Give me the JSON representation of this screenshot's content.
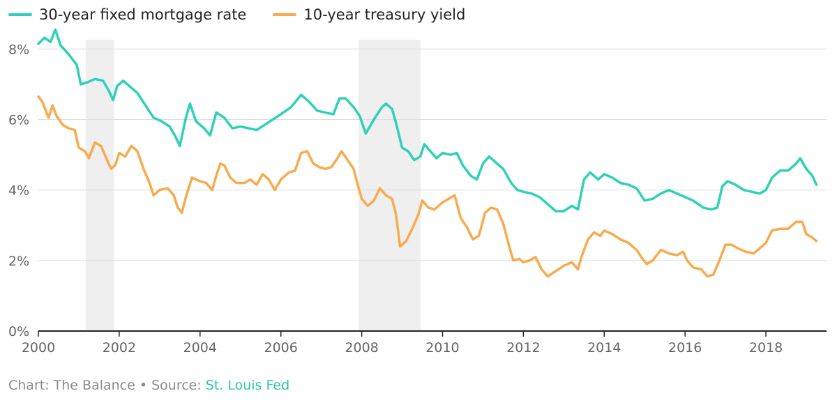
{
  "chart_data": {
    "type": "line",
    "xlim": [
      2000,
      2019.5
    ],
    "ylim": [
      0,
      8.5
    ],
    "x_ticks": [
      2000,
      2002,
      2004,
      2006,
      2008,
      2010,
      2012,
      2014,
      2016,
      2018
    ],
    "x_tick_labels": [
      "2000",
      "2002",
      "2004",
      "2006",
      "2008",
      "2010",
      "2012",
      "2014",
      "2016",
      "2018"
    ],
    "y_ticks": [
      0,
      2,
      4,
      6,
      8
    ],
    "y_tick_labels": [
      "0%",
      "2%",
      "4%",
      "6%",
      "8%"
    ],
    "grid": true,
    "legend_position": "top-left",
    "recession_bands": [
      [
        2001.17,
        2001.87
      ],
      [
        2007.92,
        2009.46
      ]
    ],
    "series": [
      {
        "name": "30-year fixed mortgage rate",
        "color": "#2ed0b8",
        "points": [
          [
            2000.0,
            8.15
          ],
          [
            2000.15,
            8.32
          ],
          [
            2000.3,
            8.2
          ],
          [
            2000.42,
            8.55
          ],
          [
            2000.55,
            8.1
          ],
          [
            2000.75,
            7.85
          ],
          [
            2000.95,
            7.55
          ],
          [
            2001.05,
            7.0
          ],
          [
            2001.2,
            7.05
          ],
          [
            2001.4,
            7.15
          ],
          [
            2001.6,
            7.1
          ],
          [
            2001.75,
            6.8
          ],
          [
            2001.85,
            6.55
          ],
          [
            2001.95,
            6.95
          ],
          [
            2002.1,
            7.1
          ],
          [
            2002.25,
            6.95
          ],
          [
            2002.45,
            6.75
          ],
          [
            2002.65,
            6.4
          ],
          [
            2002.85,
            6.05
          ],
          [
            2003.05,
            5.95
          ],
          [
            2003.25,
            5.8
          ],
          [
            2003.4,
            5.5
          ],
          [
            2003.5,
            5.25
          ],
          [
            2003.65,
            6.05
          ],
          [
            2003.75,
            6.45
          ],
          [
            2003.9,
            5.95
          ],
          [
            2004.1,
            5.75
          ],
          [
            2004.25,
            5.55
          ],
          [
            2004.4,
            6.2
          ],
          [
            2004.6,
            6.05
          ],
          [
            2004.8,
            5.75
          ],
          [
            2005.0,
            5.8
          ],
          [
            2005.2,
            5.75
          ],
          [
            2005.4,
            5.7
          ],
          [
            2005.6,
            5.85
          ],
          [
            2005.8,
            6.0
          ],
          [
            2006.0,
            6.15
          ],
          [
            2006.25,
            6.35
          ],
          [
            2006.5,
            6.7
          ],
          [
            2006.7,
            6.5
          ],
          [
            2006.9,
            6.25
          ],
          [
            2007.1,
            6.2
          ],
          [
            2007.3,
            6.15
          ],
          [
            2007.45,
            6.6
          ],
          [
            2007.6,
            6.6
          ],
          [
            2007.8,
            6.35
          ],
          [
            2007.95,
            6.1
          ],
          [
            2008.1,
            5.6
          ],
          [
            2008.3,
            6.0
          ],
          [
            2008.5,
            6.35
          ],
          [
            2008.6,
            6.45
          ],
          [
            2008.75,
            6.3
          ],
          [
            2008.85,
            5.9
          ],
          [
            2009.0,
            5.2
          ],
          [
            2009.15,
            5.1
          ],
          [
            2009.3,
            4.85
          ],
          [
            2009.45,
            4.95
          ],
          [
            2009.55,
            5.3
          ],
          [
            2009.7,
            5.1
          ],
          [
            2009.85,
            4.9
          ],
          [
            2010.0,
            5.05
          ],
          [
            2010.2,
            5.0
          ],
          [
            2010.35,
            5.05
          ],
          [
            2010.5,
            4.7
          ],
          [
            2010.7,
            4.4
          ],
          [
            2010.85,
            4.3
          ],
          [
            2011.0,
            4.75
          ],
          [
            2011.15,
            4.95
          ],
          [
            2011.3,
            4.8
          ],
          [
            2011.5,
            4.6
          ],
          [
            2011.7,
            4.2
          ],
          [
            2011.85,
            4.0
          ],
          [
            2012.0,
            3.95
          ],
          [
            2012.2,
            3.9
          ],
          [
            2012.4,
            3.8
          ],
          [
            2012.6,
            3.6
          ],
          [
            2012.8,
            3.4
          ],
          [
            2013.0,
            3.4
          ],
          [
            2013.2,
            3.55
          ],
          [
            2013.35,
            3.45
          ],
          [
            2013.5,
            4.3
          ],
          [
            2013.65,
            4.5
          ],
          [
            2013.85,
            4.3
          ],
          [
            2014.0,
            4.45
          ],
          [
            2014.2,
            4.35
          ],
          [
            2014.4,
            4.2
          ],
          [
            2014.6,
            4.15
          ],
          [
            2014.8,
            4.05
          ],
          [
            2015.0,
            3.7
          ],
          [
            2015.2,
            3.75
          ],
          [
            2015.4,
            3.9
          ],
          [
            2015.6,
            4.0
          ],
          [
            2015.8,
            3.9
          ],
          [
            2016.0,
            3.8
          ],
          [
            2016.2,
            3.7
          ],
          [
            2016.45,
            3.5
          ],
          [
            2016.65,
            3.45
          ],
          [
            2016.8,
            3.5
          ],
          [
            2016.92,
            4.1
          ],
          [
            2017.05,
            4.25
          ],
          [
            2017.25,
            4.15
          ],
          [
            2017.45,
            4.0
          ],
          [
            2017.65,
            3.95
          ],
          [
            2017.85,
            3.9
          ],
          [
            2018.0,
            4.0
          ],
          [
            2018.15,
            4.35
          ],
          [
            2018.35,
            4.55
          ],
          [
            2018.55,
            4.55
          ],
          [
            2018.75,
            4.75
          ],
          [
            2018.85,
            4.9
          ],
          [
            2019.0,
            4.6
          ],
          [
            2019.15,
            4.4
          ],
          [
            2019.25,
            4.15
          ]
        ]
      },
      {
        "name": "10-year treasury yield",
        "color": "#f7ab4d",
        "points": [
          [
            2000.0,
            6.65
          ],
          [
            2000.1,
            6.5
          ],
          [
            2000.25,
            6.05
          ],
          [
            2000.35,
            6.4
          ],
          [
            2000.45,
            6.1
          ],
          [
            2000.6,
            5.85
          ],
          [
            2000.75,
            5.75
          ],
          [
            2000.9,
            5.7
          ],
          [
            2001.0,
            5.2
          ],
          [
            2001.15,
            5.1
          ],
          [
            2001.25,
            4.9
          ],
          [
            2001.4,
            5.35
          ],
          [
            2001.55,
            5.25
          ],
          [
            2001.7,
            4.85
          ],
          [
            2001.8,
            4.6
          ],
          [
            2001.9,
            4.7
          ],
          [
            2002.0,
            5.05
          ],
          [
            2002.15,
            4.95
          ],
          [
            2002.3,
            5.25
          ],
          [
            2002.45,
            5.1
          ],
          [
            2002.6,
            4.6
          ],
          [
            2002.75,
            4.2
          ],
          [
            2002.85,
            3.85
          ],
          [
            2003.0,
            4.0
          ],
          [
            2003.2,
            4.05
          ],
          [
            2003.35,
            3.85
          ],
          [
            2003.45,
            3.5
          ],
          [
            2003.55,
            3.35
          ],
          [
            2003.65,
            3.8
          ],
          [
            2003.8,
            4.35
          ],
          [
            2004.0,
            4.25
          ],
          [
            2004.15,
            4.2
          ],
          [
            2004.3,
            4.0
          ],
          [
            2004.4,
            4.4
          ],
          [
            2004.5,
            4.75
          ],
          [
            2004.6,
            4.7
          ],
          [
            2004.75,
            4.35
          ],
          [
            2004.9,
            4.2
          ],
          [
            2005.1,
            4.2
          ],
          [
            2005.25,
            4.3
          ],
          [
            2005.4,
            4.15
          ],
          [
            2005.55,
            4.45
          ],
          [
            2005.7,
            4.3
          ],
          [
            2005.85,
            4.0
          ],
          [
            2006.0,
            4.3
          ],
          [
            2006.2,
            4.5
          ],
          [
            2006.35,
            4.55
          ],
          [
            2006.5,
            5.05
          ],
          [
            2006.65,
            5.1
          ],
          [
            2006.8,
            4.75
          ],
          [
            2006.95,
            4.65
          ],
          [
            2007.1,
            4.6
          ],
          [
            2007.25,
            4.65
          ],
          [
            2007.4,
            4.9
          ],
          [
            2007.5,
            5.1
          ],
          [
            2007.65,
            4.85
          ],
          [
            2007.8,
            4.6
          ],
          [
            2007.9,
            4.15
          ],
          [
            2008.0,
            3.75
          ],
          [
            2008.15,
            3.55
          ],
          [
            2008.3,
            3.7
          ],
          [
            2008.45,
            4.05
          ],
          [
            2008.6,
            3.85
          ],
          [
            2008.75,
            3.75
          ],
          [
            2008.85,
            3.3
          ],
          [
            2008.95,
            2.4
          ],
          [
            2009.1,
            2.55
          ],
          [
            2009.25,
            2.9
          ],
          [
            2009.4,
            3.3
          ],
          [
            2009.5,
            3.7
          ],
          [
            2009.65,
            3.5
          ],
          [
            2009.8,
            3.45
          ],
          [
            2010.0,
            3.65
          ],
          [
            2010.15,
            3.75
          ],
          [
            2010.3,
            3.85
          ],
          [
            2010.45,
            3.2
          ],
          [
            2010.6,
            2.95
          ],
          [
            2010.75,
            2.6
          ],
          [
            2010.9,
            2.7
          ],
          [
            2011.05,
            3.35
          ],
          [
            2011.2,
            3.5
          ],
          [
            2011.35,
            3.45
          ],
          [
            2011.5,
            3.05
          ],
          [
            2011.65,
            2.4
          ],
          [
            2011.75,
            2.0
          ],
          [
            2011.9,
            2.05
          ],
          [
            2012.0,
            1.95
          ],
          [
            2012.15,
            2.0
          ],
          [
            2012.3,
            2.1
          ],
          [
            2012.45,
            1.75
          ],
          [
            2012.6,
            1.55
          ],
          [
            2012.8,
            1.7
          ],
          [
            2013.0,
            1.85
          ],
          [
            2013.2,
            1.95
          ],
          [
            2013.35,
            1.75
          ],
          [
            2013.45,
            2.15
          ],
          [
            2013.6,
            2.6
          ],
          [
            2013.75,
            2.8
          ],
          [
            2013.9,
            2.7
          ],
          [
            2014.0,
            2.85
          ],
          [
            2014.2,
            2.75
          ],
          [
            2014.4,
            2.6
          ],
          [
            2014.6,
            2.5
          ],
          [
            2014.8,
            2.3
          ],
          [
            2014.95,
            2.05
          ],
          [
            2015.05,
            1.9
          ],
          [
            2015.2,
            2.0
          ],
          [
            2015.4,
            2.3
          ],
          [
            2015.6,
            2.2
          ],
          [
            2015.8,
            2.15
          ],
          [
            2015.95,
            2.25
          ],
          [
            2016.05,
            2.0
          ],
          [
            2016.2,
            1.8
          ],
          [
            2016.4,
            1.75
          ],
          [
            2016.55,
            1.55
          ],
          [
            2016.7,
            1.6
          ],
          [
            2016.85,
            2.0
          ],
          [
            2017.0,
            2.45
          ],
          [
            2017.15,
            2.45
          ],
          [
            2017.3,
            2.35
          ],
          [
            2017.5,
            2.25
          ],
          [
            2017.7,
            2.2
          ],
          [
            2017.85,
            2.35
          ],
          [
            2018.0,
            2.5
          ],
          [
            2018.15,
            2.85
          ],
          [
            2018.35,
            2.9
          ],
          [
            2018.55,
            2.9
          ],
          [
            2018.75,
            3.1
          ],
          [
            2018.9,
            3.1
          ],
          [
            2019.0,
            2.75
          ],
          [
            2019.15,
            2.65
          ],
          [
            2019.25,
            2.55
          ]
        ]
      }
    ]
  },
  "footer": {
    "prefix": "Chart: The Balance • Source: ",
    "source_link": "St. Louis Fed"
  }
}
